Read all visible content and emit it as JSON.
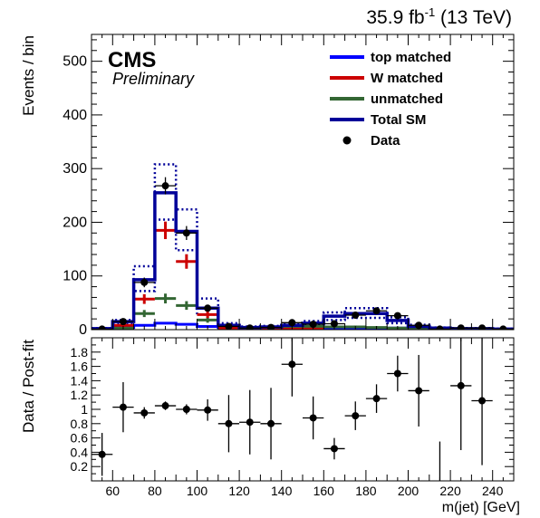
{
  "header": {
    "lumi_main": "35.9 fb",
    "lumi_sup": "-1",
    "lumi_tail": " (13 TeV)"
  },
  "labels": {
    "experiment": "CMS",
    "status": "Preliminary"
  },
  "colors": {
    "top_matched": "#0000ff",
    "w_matched": "#cc0000",
    "unmatched": "#336633",
    "total_sm": "#000099",
    "data": "#000000"
  },
  "chart_data": [
    {
      "type": "bar",
      "xlabel": "",
      "ylabel": "Events / bin",
      "xlim": [
        50,
        250
      ],
      "ylim": [
        0,
        550
      ],
      "y_ticks": [
        0,
        100,
        200,
        300,
        400,
        500
      ],
      "bin_edges": [
        50,
        60,
        70,
        80,
        90,
        100,
        110,
        120,
        130,
        140,
        150,
        160,
        170,
        180,
        190,
        200,
        210,
        220,
        230,
        240,
        250
      ],
      "bin_centers": [
        55,
        65,
        75,
        85,
        95,
        105,
        115,
        125,
        135,
        145,
        155,
        165,
        175,
        185,
        195,
        205,
        215,
        225,
        235,
        245
      ],
      "legend_position": "top-right",
      "series": [
        {
          "name": "top matched",
          "style": "line",
          "values": [
            2,
            4,
            8,
            12,
            10,
            6,
            4,
            3,
            3,
            3,
            3,
            3,
            3,
            3,
            3,
            2,
            2,
            1,
            1,
            1
          ]
        },
        {
          "name": "W matched",
          "style": "cross",
          "values": [
            0,
            8,
            57,
            185,
            127,
            28,
            3,
            1,
            1,
            1,
            1,
            0,
            0,
            0,
            0,
            0,
            0,
            0,
            0,
            0
          ]
        },
        {
          "name": "unmatched",
          "style": "cross",
          "values": [
            0,
            3,
            30,
            58,
            45,
            18,
            5,
            3,
            3,
            4,
            6,
            5,
            5,
            4,
            3,
            2,
            1,
            1,
            1,
            0
          ]
        },
        {
          "name": "Total SM",
          "style": "step",
          "values": [
            2,
            15,
            93,
            255,
            183,
            40,
            8,
            4,
            5,
            8,
            12,
            25,
            30,
            30,
            17,
            6,
            3,
            2,
            2,
            1
          ],
          "band_up": [
            3,
            18,
            118,
            308,
            224,
            58,
            12,
            6,
            7,
            11,
            16,
            32,
            40,
            40,
            23,
            9,
            4,
            3,
            3,
            2
          ],
          "band_down": [
            1,
            12,
            72,
            205,
            148,
            28,
            5,
            2,
            3,
            5,
            8,
            18,
            22,
            22,
            12,
            4,
            2,
            1,
            1,
            0
          ]
        },
        {
          "name": "Data",
          "style": "points",
          "values": [
            1,
            15,
            88,
            268,
            180,
            40,
            6,
            3,
            4,
            13,
            10,
            11,
            27,
            35,
            26,
            8,
            1,
            3,
            3,
            1
          ],
          "errors": [
            1,
            4,
            9,
            16,
            13,
            6,
            2.5,
            2,
            2,
            3.5,
            3,
            3.5,
            5,
            6,
            5,
            3,
            1,
            2,
            2,
            1
          ]
        }
      ]
    },
    {
      "type": "scatter",
      "xlabel": "m(jet) [GeV]",
      "ylabel": "Data / Post-fit",
      "xlim": [
        50,
        250
      ],
      "ylim": [
        0,
        2
      ],
      "y_ticks": [
        0.2,
        0.4,
        0.6,
        0.8,
        1,
        1.2,
        1.4,
        1.6,
        1.8
      ],
      "x_ticks": [
        60,
        80,
        100,
        120,
        140,
        160,
        180,
        200,
        220,
        240
      ],
      "series": [
        {
          "name": "",
          "x": [
            55,
            65,
            75,
            85,
            95,
            105,
            115,
            125,
            135,
            145,
            155,
            165,
            175,
            185,
            195,
            205,
            225,
            235
          ],
          "y": [
            0.37,
            1.03,
            0.95,
            1.05,
            1.0,
            0.99,
            0.8,
            0.82,
            0.8,
            1.63,
            0.88,
            0.45,
            0.91,
            1.15,
            1.5,
            1.26,
            1.33,
            1.12
          ],
          "err": [
            0.3,
            0.35,
            0.08,
            0.06,
            0.07,
            0.15,
            0.4,
            0.45,
            0.5,
            0.45,
            0.3,
            0.15,
            0.2,
            0.2,
            0.25,
            0.5,
            0.9,
            0.9
          ]
        },
        {
          "name": "",
          "x": [
            215
          ],
          "y": [
            0
          ],
          "err": [
            0.55
          ]
        }
      ]
    }
  ]
}
